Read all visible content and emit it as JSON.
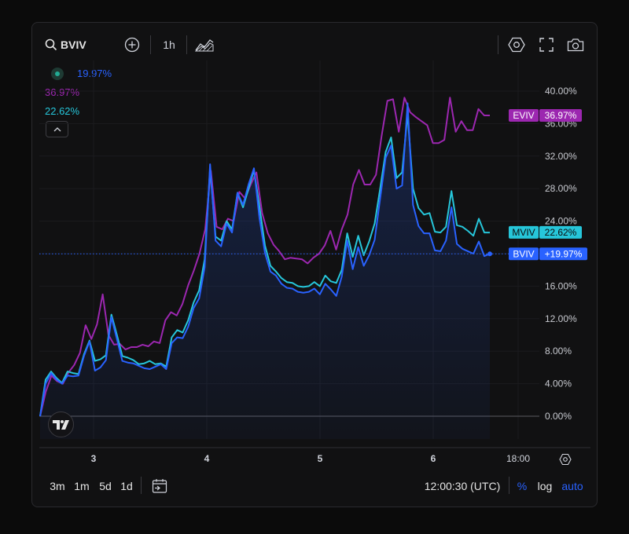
{
  "toolbar": {
    "symbol": "BVIV",
    "interval": "1h"
  },
  "legend": {
    "bviv_value": "19.97%",
    "eviv_value": "36.97%",
    "mviv_value": "22.62%"
  },
  "bottom": {
    "ranges": [
      "3m",
      "1m",
      "5d",
      "1d"
    ],
    "time": "12:00:30 (UTC)",
    "percent": "%",
    "log": "log",
    "auto": "auto"
  },
  "colors": {
    "bviv": "#2962ff",
    "eviv": "#9c27b0",
    "mviv": "#26c6da",
    "bviv_tag": "#2962ff",
    "eviv_tag": "#9c27b0",
    "mviv_tag": "#26c6da"
  },
  "chart_data": {
    "type": "line",
    "y_ticks": [
      "40.00%",
      "36.00%",
      "32.00%",
      "28.00%",
      "24.00%",
      "20.00%",
      "16.00%",
      "12.00%",
      "8.00%",
      "4.00%",
      "0.00%"
    ],
    "x_ticks": [
      "3",
      "4",
      "5",
      "6",
      "18:00"
    ],
    "ylim": [
      0,
      40
    ],
    "price_tags": {
      "eviv": {
        "label": "EVIV",
        "value": "36.97%"
      },
      "mviv": {
        "label": "MVIV",
        "value": "22.62%"
      },
      "bviv": {
        "label": "BVIV",
        "value": "+19.97%"
      }
    },
    "series": [
      {
        "name": "EVIV",
        "values": [
          0.0,
          3.0,
          5.0,
          4.3,
          4.0,
          5.4,
          6.3,
          7.8,
          11.2,
          9.5,
          11.3,
          15.0,
          10.0,
          8.8,
          8.9,
          8.2,
          8.5,
          8.5,
          8.8,
          8.6,
          9.2,
          9.0,
          11.8,
          12.8,
          12.4,
          13.8,
          16.1,
          17.9,
          20.0,
          23.0,
          30.2,
          23.3,
          23.0,
          24.3,
          24.0,
          27.6,
          26.8,
          28.5,
          30.0,
          25.0,
          22.5,
          21.1,
          20.3,
          19.3,
          19.5,
          19.4,
          19.3,
          18.8,
          19.5,
          20.0,
          21.0,
          22.8,
          20.5,
          23.0,
          24.8,
          28.5,
          30.3,
          28.5,
          28.5,
          29.7,
          34.5,
          38.8,
          39.0,
          35.0,
          39.2,
          37.4,
          36.8,
          36.3,
          35.8,
          33.6,
          33.6,
          34.0,
          39.2,
          35.0,
          36.3,
          35.2,
          35.2,
          37.8,
          37.0,
          37.0
        ]
      },
      {
        "name": "MVIV",
        "values": [
          0.0,
          4.5,
          5.5,
          4.7,
          4.1,
          5.5,
          5.3,
          5.2,
          7.6,
          9.3,
          6.8,
          7.0,
          7.5,
          12.5,
          10.0,
          7.4,
          7.2,
          6.9,
          6.4,
          6.5,
          6.8,
          6.4,
          6.5,
          6.1,
          9.7,
          10.6,
          10.3,
          11.8,
          14.0,
          15.5,
          19.3,
          30.5,
          22.1,
          21.6,
          24.0,
          23.0,
          27.5,
          25.7,
          28.0,
          30.3,
          25.8,
          21.0,
          18.5,
          17.8,
          17.0,
          16.5,
          16.4,
          16.0,
          15.9,
          16.0,
          16.5,
          16.0,
          17.3,
          16.6,
          16.4,
          18.0,
          22.5,
          19.6,
          22.2,
          19.8,
          21.5,
          23.7,
          28.0,
          32.5,
          34.3,
          29.3,
          30.0,
          37.2,
          28.0,
          25.6,
          24.8,
          25.0,
          22.7,
          22.6,
          23.3,
          27.7,
          23.5,
          23.3,
          22.8,
          22.2,
          24.3,
          22.6,
          22.6
        ]
      },
      {
        "name": "BVIV",
        "values": [
          0.0,
          4.0,
          5.3,
          4.5,
          4.0,
          5.0,
          4.9,
          5.0,
          7.4,
          9.2,
          5.6,
          6.0,
          6.9,
          12.2,
          9.5,
          6.8,
          6.6,
          6.5,
          6.2,
          5.9,
          5.8,
          6.1,
          6.4,
          5.8,
          9.0,
          9.7,
          9.6,
          11.0,
          13.3,
          14.5,
          18.3,
          31.0,
          21.6,
          20.9,
          23.7,
          22.6,
          27.5,
          26.0,
          28.5,
          30.5,
          24.4,
          20.1,
          17.8,
          17.3,
          16.3,
          15.8,
          15.7,
          15.3,
          15.2,
          15.3,
          15.7,
          15.0,
          16.3,
          15.6,
          14.8,
          17.2,
          21.6,
          18.1,
          20.8,
          18.5,
          19.8,
          21.7,
          26.8,
          31.8,
          33.3,
          28.0,
          28.4,
          38.5,
          26.0,
          23.4,
          22.5,
          22.5,
          20.4,
          20.3,
          21.6,
          25.7,
          21.2,
          20.6,
          20.3,
          20.0,
          21.5,
          19.7,
          19.97
        ]
      }
    ]
  }
}
